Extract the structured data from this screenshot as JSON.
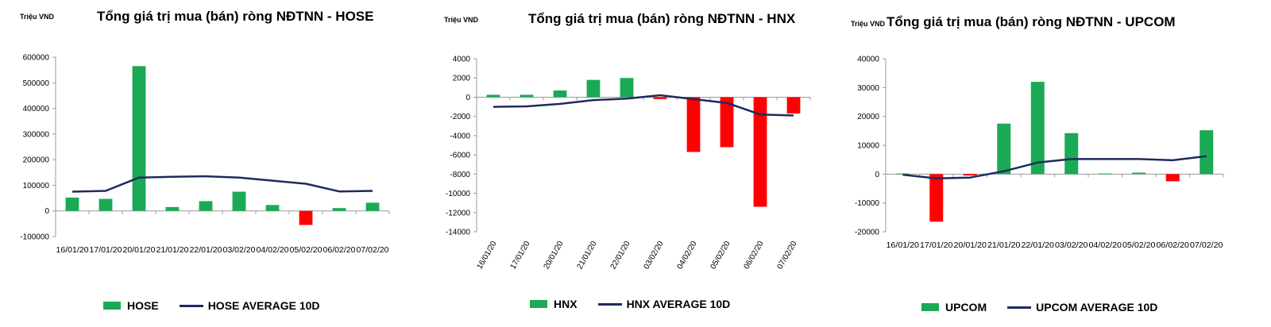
{
  "colors": {
    "positive": "#1aaa55",
    "negative": "#ff0000",
    "average": "#1f2a5e",
    "axis": "#999999"
  },
  "chart_data": [
    {
      "type": "bar",
      "title": "Tổng giá trị mua (bán) ròng NĐTNN - HOSE",
      "unit": "Triệu VND",
      "categories": [
        "16/01/20",
        "17/01/20",
        "20/01/20",
        "21/01/20",
        "22/01/20",
        "03/02/20",
        "04/02/20",
        "05/02/20",
        "06/02/20",
        "07/02/20"
      ],
      "x_tick_labels": [
        "16/01/20",
        "17/01/20",
        "20/01/20",
        "21/01/20",
        "22/01/20",
        "03/02/20",
        "04/02/20",
        "05/02/20",
        "06/02/20",
        "07/02/20"
      ],
      "ylim": [
        -100000,
        600000
      ],
      "yticks": [
        600000,
        500000,
        400000,
        300000,
        200000,
        100000,
        0,
        -100000
      ],
      "x_label_rotation": 0,
      "series": [
        {
          "name": "HOSE",
          "type": "bar",
          "values": [
            52000,
            47000,
            565000,
            15000,
            38000,
            75000,
            23000,
            -55000,
            11000,
            32000
          ]
        },
        {
          "name": "HOSE AVERAGE 10D",
          "type": "line",
          "values": [
            75000,
            78000,
            130000,
            133000,
            135000,
            130000,
            118000,
            106000,
            76000,
            78000
          ]
        }
      ],
      "legend": {
        "bar_label": "HOSE",
        "line_label": "HOSE AVERAGE 10D"
      }
    },
    {
      "type": "bar",
      "title": "Tổng giá trị mua (bán) ròng NĐTNN - HNX",
      "unit": "Triệu VND",
      "categories": [
        "16/01/20",
        "17/01/20",
        "20/01/20",
        "21/01/20",
        "22/01/20",
        "03/02/20",
        "04/02/20",
        "05/02/20",
        "06/02/20",
        "07/02/20"
      ],
      "x_tick_labels": [
        "16/01/20",
        "17/01/20",
        "20/01/20",
        "21/01/20",
        "22/01/20",
        "03/02/20",
        "04/02/20",
        "05/02/20",
        "06/02/20",
        "07/02/20"
      ],
      "ylim": [
        -14000,
        4000
      ],
      "yticks": [
        4000,
        2000,
        0,
        -2000,
        -4000,
        -6000,
        -8000,
        -10000,
        -12000,
        -14000
      ],
      "x_label_rotation": -60,
      "series": [
        {
          "name": "HNX",
          "type": "bar",
          "values": [
            250,
            250,
            700,
            1800,
            2000,
            -200,
            -5700,
            -5200,
            -11400,
            -1700
          ]
        },
        {
          "name": "HNX AVERAGE 10D",
          "type": "line",
          "values": [
            -1000,
            -950,
            -700,
            -300,
            -150,
            200,
            -200,
            -600,
            -1800,
            -1900
          ]
        }
      ],
      "legend": {
        "bar_label": "HNX",
        "line_label": "HNX AVERAGE 10D"
      }
    },
    {
      "type": "bar",
      "title": "Tổng giá trị mua (bán) ròng NĐTNN - UPCOM",
      "unit": "Triệu VND",
      "categories": [
        "16/01/20",
        "17/01/20",
        "20/01/20",
        "21/01/20",
        "22/01/20",
        "03/02/20",
        "04/02/20",
        "05/02/20",
        "06/02/20",
        "07/02/20"
      ],
      "x_tick_labels": [
        "16/01/20",
        "17/01/20",
        "20/01/20",
        "21/01/20",
        "22/01/20",
        "03/02/20",
        "04/02/20",
        "05/02/20",
        "06/02/20",
        "07/02/20"
      ],
      "ylim": [
        -20000,
        40000
      ],
      "yticks": [
        40000,
        30000,
        20000,
        10000,
        0,
        -10000,
        -20000
      ],
      "x_label_rotation": 0,
      "series": [
        {
          "name": "UPCOM",
          "type": "bar",
          "values": [
            200,
            -16500,
            -500,
            17500,
            32000,
            14200,
            200,
            500,
            -2500,
            15200
          ]
        },
        {
          "name": "UPCOM AVERAGE 10D",
          "type": "line",
          "values": [
            -200,
            -1500,
            -1200,
            1000,
            4000,
            5200,
            5200,
            5200,
            4800,
            6200
          ]
        }
      ],
      "legend": {
        "bar_label": "UPCOM",
        "line_label": "UPCOM AVERAGE 10D"
      }
    }
  ]
}
